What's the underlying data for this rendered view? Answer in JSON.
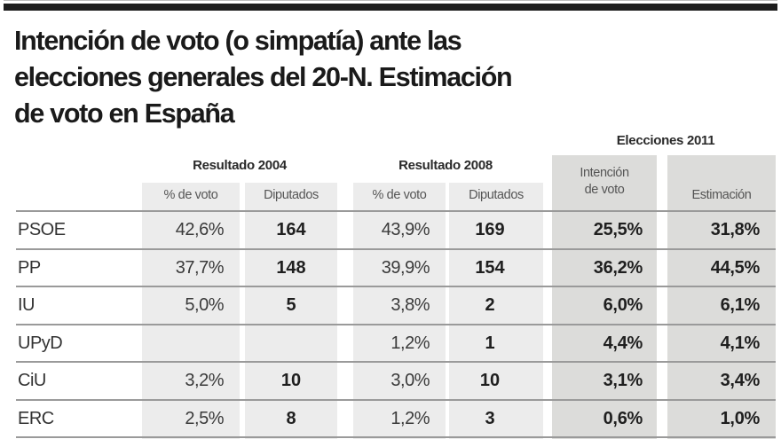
{
  "title": {
    "lines": [
      "Intención de voto (o simpatía) ante las",
      "elecciones generales del 20-N. Estimación",
      "de voto en España"
    ]
  },
  "colors": {
    "rule": "#1d1d1d",
    "column_light": "#ececec",
    "column_dark": "#dcdcda",
    "divider": "#9a9a9a"
  },
  "chart_data": {
    "type": "table",
    "title": "Intención de voto (o simpatía) ante las elecciones generales del 20-N. Estimación de voto en España",
    "groups": [
      {
        "label": "Resultado 2004",
        "columns": [
          "% de voto",
          "Diputados"
        ]
      },
      {
        "label": "Resultado 2008",
        "columns": [
          "% de voto",
          "Diputados"
        ]
      },
      {
        "label": "Elecciones 2011",
        "columns": [
          "Intención de voto",
          "Estimación"
        ]
      }
    ],
    "subheaders": {
      "r2004_pct": "% de voto",
      "r2004_seats": "Diputados",
      "r2008_pct": "% de voto",
      "r2008_seats": "Diputados",
      "e2011_intent_line1": "Intención",
      "e2011_intent_line2": "de voto",
      "e2011_estimate": "Estimación"
    },
    "group_labels": {
      "r2004": "Resultado 2004",
      "r2008": "Resultado 2008",
      "e2011": "Elecciones 2011"
    },
    "rows": [
      {
        "party": "PSOE",
        "r2004_pct": "42,6%",
        "r2004_seats": "164",
        "r2008_pct": "43,9%",
        "r2008_seats": "169",
        "e2011_intent": "25,5%",
        "e2011_estimate": "31,8%"
      },
      {
        "party": "PP",
        "r2004_pct": "37,7%",
        "r2004_seats": "148",
        "r2008_pct": "39,9%",
        "r2008_seats": "154",
        "e2011_intent": "36,2%",
        "e2011_estimate": "44,5%"
      },
      {
        "party": "IU",
        "r2004_pct": "5,0%",
        "r2004_seats": "5",
        "r2008_pct": "3,8%",
        "r2008_seats": "2",
        "e2011_intent": "6,0%",
        "e2011_estimate": "6,1%"
      },
      {
        "party": "UPyD",
        "r2004_pct": "",
        "r2004_seats": "",
        "r2008_pct": "1,2%",
        "r2008_seats": "1",
        "e2011_intent": "4,4%",
        "e2011_estimate": "4,1%"
      },
      {
        "party": "CiU",
        "r2004_pct": "3,2%",
        "r2004_seats": "10",
        "r2008_pct": "3,0%",
        "r2008_seats": "10",
        "e2011_intent": "3,1%",
        "e2011_estimate": "3,4%"
      },
      {
        "party": "ERC",
        "r2004_pct": "2,5%",
        "r2004_seats": "8",
        "r2008_pct": "1,2%",
        "r2008_seats": "3",
        "e2011_intent": "0,6%",
        "e2011_estimate": "1,0%"
      }
    ]
  }
}
